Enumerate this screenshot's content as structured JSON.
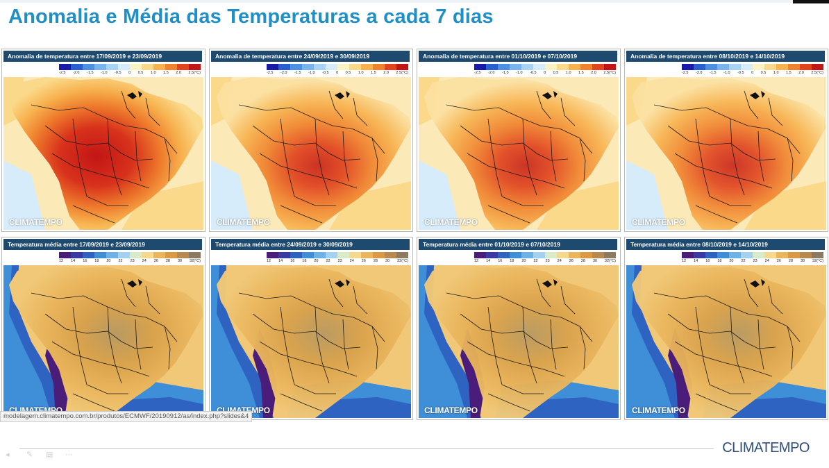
{
  "title": "Anomalia e Média das Temperaturas a cada 7 dias",
  "url_text": "modelagem.climatempo.com.br/produtos/ECMWF/20190912/as/index.php?slides&4",
  "brand": "CLIMATEMPO",
  "watermark": "CLIMATEMPO",
  "anomaly_scale": {
    "ticks": [
      "-2.5",
      "-2.0",
      "-1.5",
      "-1.0",
      "-0.5",
      "0",
      "0.5",
      "1.0",
      "1.5",
      "2.0",
      "2.5(°C)"
    ],
    "colors": [
      "#1a1aa8",
      "#2a5fd0",
      "#4d8fe0",
      "#7ab4ee",
      "#a9d3f5",
      "#d6ecfa",
      "#fbf3c4",
      "#fbd98a",
      "#f7b24f",
      "#f0832f",
      "#e0451f",
      "#c21515"
    ]
  },
  "temp_scale": {
    "ticks": [
      "12",
      "14",
      "16",
      "18",
      "20",
      "22",
      "23",
      "24",
      "26",
      "28",
      "30",
      "32(°C)"
    ],
    "colors": [
      "#4b1d7a",
      "#3a3aa5",
      "#2f63c2",
      "#3f8ed8",
      "#6cb2e6",
      "#a3d2f0",
      "#d9ecc9",
      "#f5d98e",
      "#eab65d",
      "#d99a43",
      "#b78a52",
      "#8c7a63"
    ]
  },
  "panels": [
    {
      "header": "Anomalia de temperatura entre  17/09/2019 e 23/09/2019",
      "kind": "anomaly",
      "intensity": 1.0
    },
    {
      "header": "Anomalia de temperatura entre  24/09/2019 e 30/09/2019",
      "kind": "anomaly",
      "intensity": 0.75
    },
    {
      "header": "Anomalia de temperatura entre  01/10/2019 e 07/10/2019",
      "kind": "anomaly",
      "intensity": 0.7
    },
    {
      "header": "Anomalia de temperatura entre  08/10/2019 e 14/10/2019",
      "kind": "anomaly",
      "intensity": 0.65
    },
    {
      "header": "Temperatura média entre  17/09/2019 e 23/09/2019",
      "kind": "mean",
      "intensity": 1.0
    },
    {
      "header": "Temperatura média entre  24/09/2019 e 30/09/2019",
      "kind": "mean",
      "intensity": 0.9
    },
    {
      "header": "Temperatura média entre  01/10/2019 e 07/10/2019",
      "kind": "mean",
      "intensity": 0.85
    },
    {
      "header": "Temperatura média entre  08/10/2019 e 14/10/2019",
      "kind": "mean",
      "intensity": 0.85
    }
  ]
}
